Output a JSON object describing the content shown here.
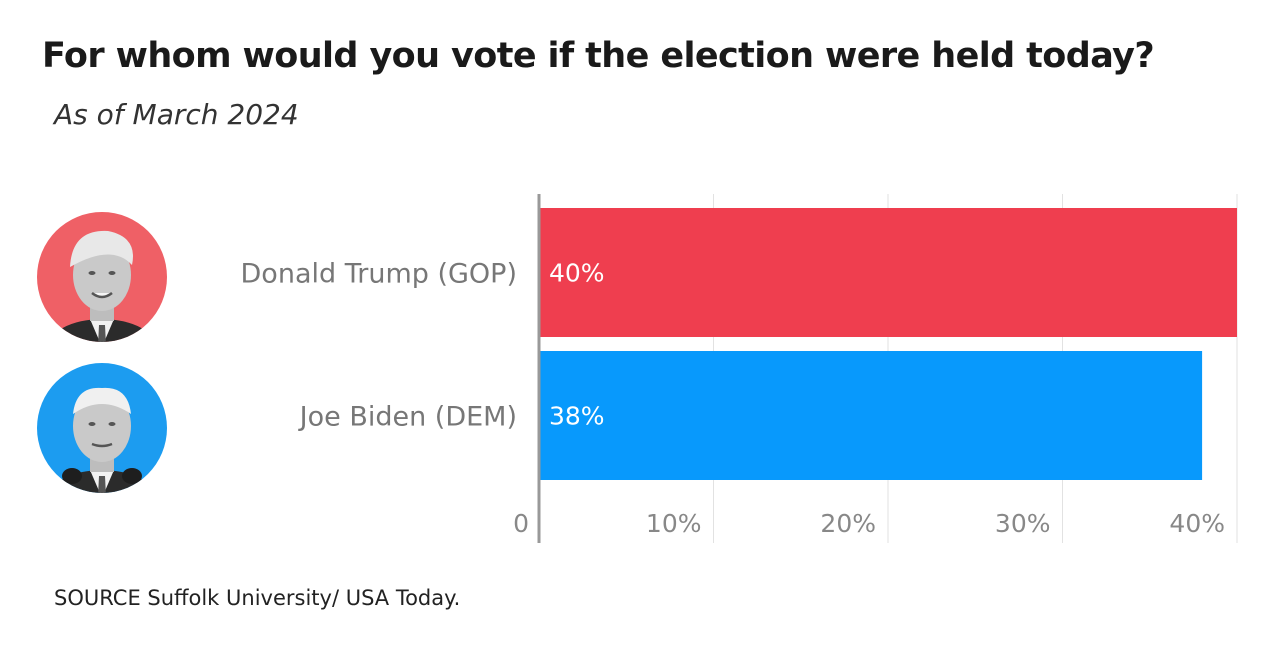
{
  "title": "For whom would you vote if the election were held today?",
  "subtitle": "As of March 2024",
  "source": "SOURCE Suffolk University/ USA Today.",
  "chart_data": {
    "type": "bar",
    "orientation": "horizontal",
    "title": "For whom would you vote if the election were held today?",
    "subtitle": "As of March 2024",
    "categories": [
      "Donald Trump (GOP)",
      "Joe Biden (DEM)"
    ],
    "values": [
      40,
      38
    ],
    "value_labels": [
      "40%",
      "38%"
    ],
    "colors": [
      "#ef3e4f",
      "#0899fc"
    ],
    "avatar_colors": [
      "#ef6066",
      "#1c9cf0"
    ],
    "xlim": [
      0,
      40
    ],
    "x_ticks": [
      0,
      10,
      20,
      30,
      40
    ],
    "x_tick_labels": [
      "0",
      "10%",
      "20%",
      "30%",
      "40%"
    ],
    "xlabel": "",
    "ylabel": "",
    "grid": true,
    "legend": "none"
  }
}
